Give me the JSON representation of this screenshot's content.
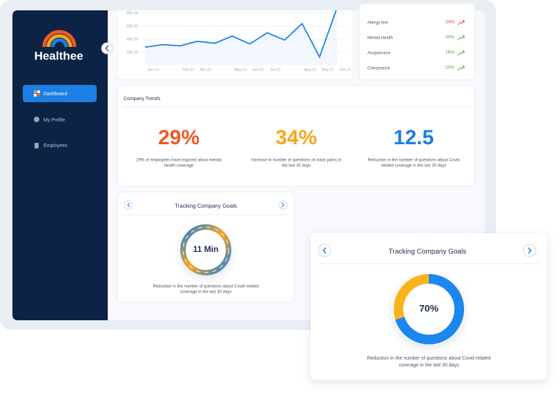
{
  "brand": "Healthee",
  "nav": [
    "Dashboard",
    "My Profile",
    "Employees"
  ],
  "chart_data": {
    "type": "line",
    "categories": [
      "Jan-21",
      null,
      "Feb-21",
      "Apr-21",
      null,
      "May-21",
      "Jun-21",
      "Jul-21",
      null,
      "Aug-21",
      "Sep-21",
      "Oct-21"
    ],
    "values": [
      280,
      320,
      300,
      370,
      340,
      450,
      330,
      500,
      390,
      640,
      130,
      880
    ],
    "color": "#1b7fe3",
    "ylim": [
      0,
      800
    ],
    "yticks": [
      {
        "value": 200,
        "label": "200.00"
      },
      {
        "value": 400,
        "label": "400.00"
      },
      {
        "value": 600,
        "label": "600.00"
      },
      {
        "value": 800,
        "label": "800.00"
      }
    ],
    "grid": true
  },
  "list": [
    {
      "name": "Allergy test",
      "value": "24%"
    },
    {
      "name": "Mental Health",
      "value": "30%"
    },
    {
      "name": "Acupuncture",
      "value": "16%"
    },
    {
      "name": "Chiropractor",
      "value": "20%"
    }
  ],
  "trends": {
    "title": "Company Trends",
    "items": [
      {
        "value": "29%",
        "desc": [
          "29% of employees have inquired about mental",
          "health coverage"
        ]
      },
      {
        "value": "34%",
        "desc": [
          "Increase in number of questions on back pains in",
          "the last 30 days"
        ]
      },
      {
        "value": "12.5",
        "desc": [
          "Reduction in the number of questions about Covid",
          "related coverage in the last 30 days"
        ]
      }
    ]
  },
  "goals_small": {
    "title": "Tracking Company Goals",
    "center": "11 Min",
    "desc": [
      "Reduction in the number of questions about Covid related",
      "coverage in the last 30 days"
    ]
  },
  "goals_large": {
    "title": "Tracking Company Goals",
    "value": 70,
    "label": "70%",
    "desc": [
      "Reduction in the number of questions about Covid related",
      "coverage in the last 30 days"
    ]
  }
}
